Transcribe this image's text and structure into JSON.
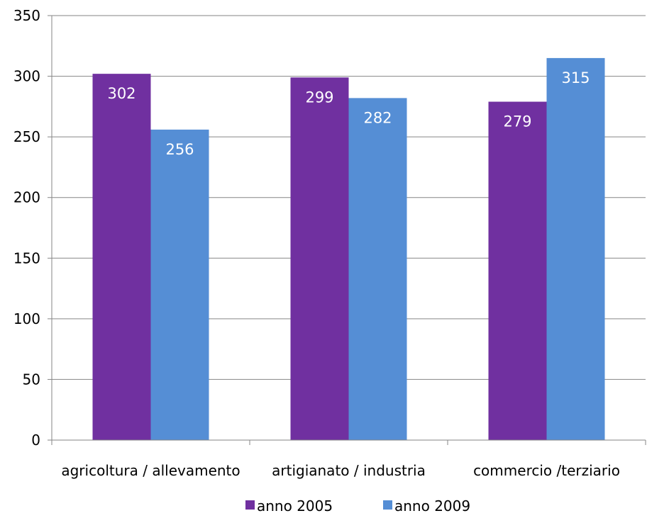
{
  "chart_data": {
    "type": "bar",
    "categories": [
      "agricoltura / allevamento",
      "artigianato / industria",
      "commercio /terziario"
    ],
    "series": [
      {
        "name": "anno 2005",
        "values": [
          302,
          299,
          279
        ],
        "color": "#7030A0"
      },
      {
        "name": "anno 2009",
        "values": [
          256,
          282,
          315
        ],
        "color": "#558ED5"
      }
    ],
    "ylim": [
      0,
      350
    ],
    "yticks": [
      0,
      50,
      100,
      150,
      200,
      250,
      300,
      350
    ],
    "grid": true,
    "data_labels": true,
    "legend_position": "bottom"
  }
}
